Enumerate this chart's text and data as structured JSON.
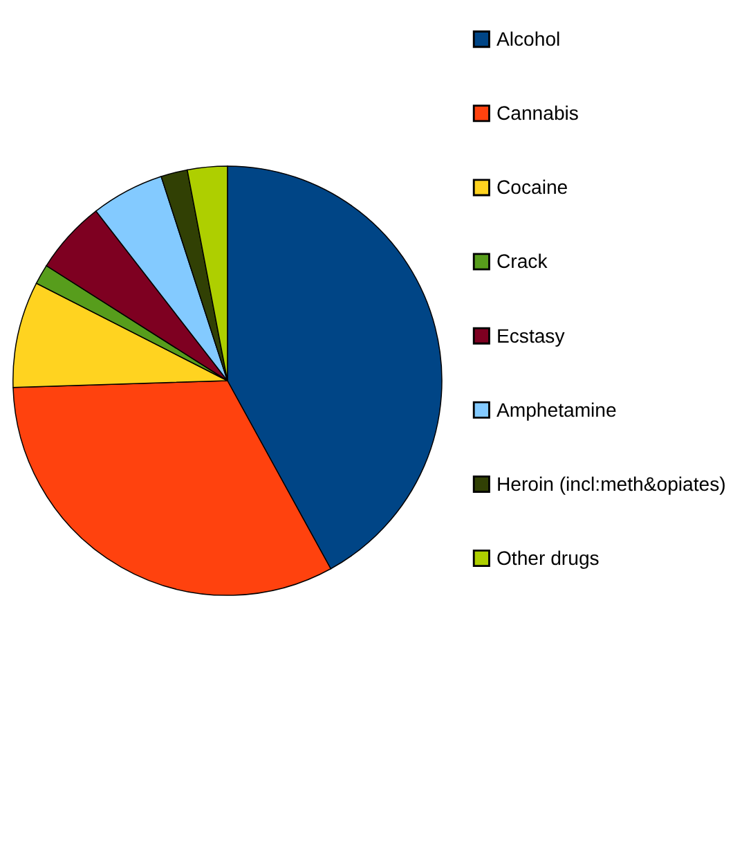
{
  "chart_data": {
    "type": "pie",
    "categories": [
      "Alcohol",
      "Cannabis",
      "Cocaine",
      "Crack",
      "Ecstasy",
      "Amphetamine",
      "Heroin (incl:meth&opiates)",
      "Other drugs"
    ],
    "values": [
      42,
      32.5,
      8,
      1.5,
      5.5,
      5.5,
      2,
      3
    ],
    "colors": [
      "#004586",
      "#ff420e",
      "#ffd320",
      "#579d1c",
      "#7e0021",
      "#83caff",
      "#314004",
      "#aecf00"
    ],
    "legend": "right"
  }
}
